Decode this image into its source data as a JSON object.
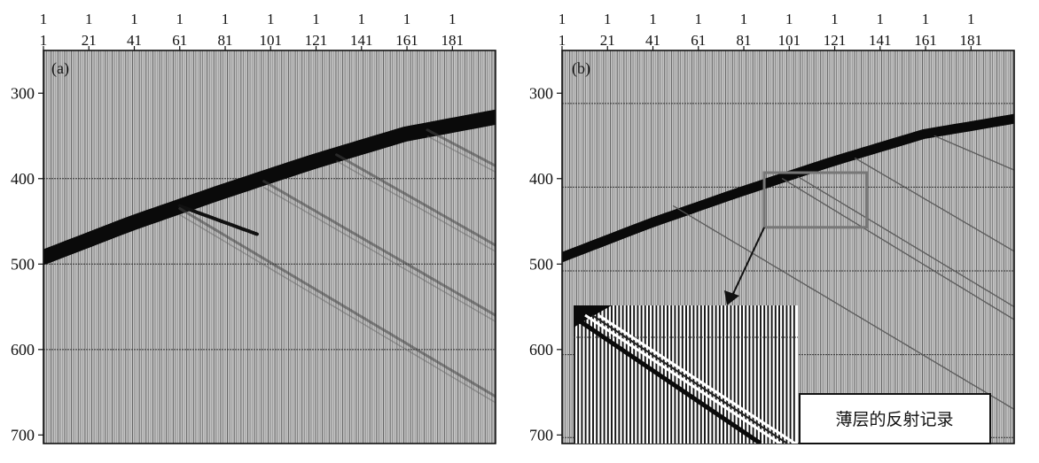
{
  "chart_data": [
    {
      "type": "seismic-section",
      "panel_label": "(a)",
      "x_tick_labels_top": [
        "1",
        "1",
        "1",
        "1",
        "1",
        "1",
        "1",
        "1",
        "1",
        "1"
      ],
      "x_tick_labels_bottom": [
        "1",
        "21",
        "41",
        "61",
        "81",
        "101",
        "121",
        "141",
        "161",
        "181"
      ],
      "y_tick_labels": [
        "300",
        "400",
        "500",
        "600",
        "700"
      ],
      "xlim": [
        1,
        200
      ],
      "ylim": [
        250,
        710
      ],
      "grid_lines_y": [
        400,
        500,
        600
      ],
      "events": [
        {
          "name": "direct arrival",
          "x": [
            1,
            40,
            80,
            120,
            160,
            200
          ],
          "y": [
            492,
            452,
            415,
            380,
            348,
            328
          ],
          "weight": "heavy"
        },
        {
          "name": "thin-layer reflection",
          "x": [
            61,
            95
          ],
          "y": [
            432,
            465
          ],
          "weight": "strong"
        },
        {
          "name": "reflection",
          "x": [
            61,
            200
          ],
          "y": [
            435,
            655
          ],
          "weight": "faint"
        },
        {
          "name": "reflection",
          "x": [
            98,
            200
          ],
          "y": [
            403,
            560
          ],
          "weight": "faint"
        },
        {
          "name": "reflection",
          "x": [
            130,
            200
          ],
          "y": [
            372,
            478
          ],
          "weight": "faint"
        },
        {
          "name": "reflection",
          "x": [
            170,
            200
          ],
          "y": [
            343,
            385
          ],
          "weight": "faint"
        }
      ]
    },
    {
      "type": "seismic-section",
      "panel_label": "(b)",
      "x_tick_labels_top": [
        "1",
        "1",
        "1",
        "1",
        "1",
        "1",
        "1",
        "1",
        "1",
        "1"
      ],
      "x_tick_labels_bottom": [
        "1",
        "21",
        "41",
        "61",
        "81",
        "101",
        "121",
        "141",
        "161",
        "181"
      ],
      "y_tick_labels": [
        "300",
        "400",
        "500",
        "600",
        "700"
      ],
      "xlim": [
        1,
        200
      ],
      "ylim": [
        250,
        710
      ],
      "grid_lines_y": [
        312,
        410,
        508,
        606,
        703
      ],
      "events": [
        {
          "name": "direct arrival",
          "x": [
            1,
            40,
            80,
            120,
            160,
            200
          ],
          "y": [
            492,
            452,
            415,
            380,
            348,
            330
          ],
          "weight": "heavy"
        },
        {
          "name": "reflection",
          "x": [
            50,
            200
          ],
          "y": [
            432,
            670
          ],
          "weight": "faint"
        },
        {
          "name": "reflection",
          "x": [
            98,
            200
          ],
          "y": [
            400,
            565
          ],
          "weight": "faint"
        },
        {
          "name": "reflection",
          "x": [
            105,
            200
          ],
          "y": [
            398,
            550
          ],
          "weight": "faint"
        },
        {
          "name": "reflection",
          "x": [
            130,
            200
          ],
          "y": [
            376,
            485
          ],
          "weight": "faint"
        },
        {
          "name": "reflection",
          "x": [
            165,
            200
          ],
          "y": [
            350,
            390
          ],
          "weight": "faint"
        }
      ],
      "zoom_box": {
        "x": [
          90,
          135
        ],
        "y": [
          393,
          457
        ]
      },
      "inset_label": "薄层的反射记录"
    }
  ]
}
